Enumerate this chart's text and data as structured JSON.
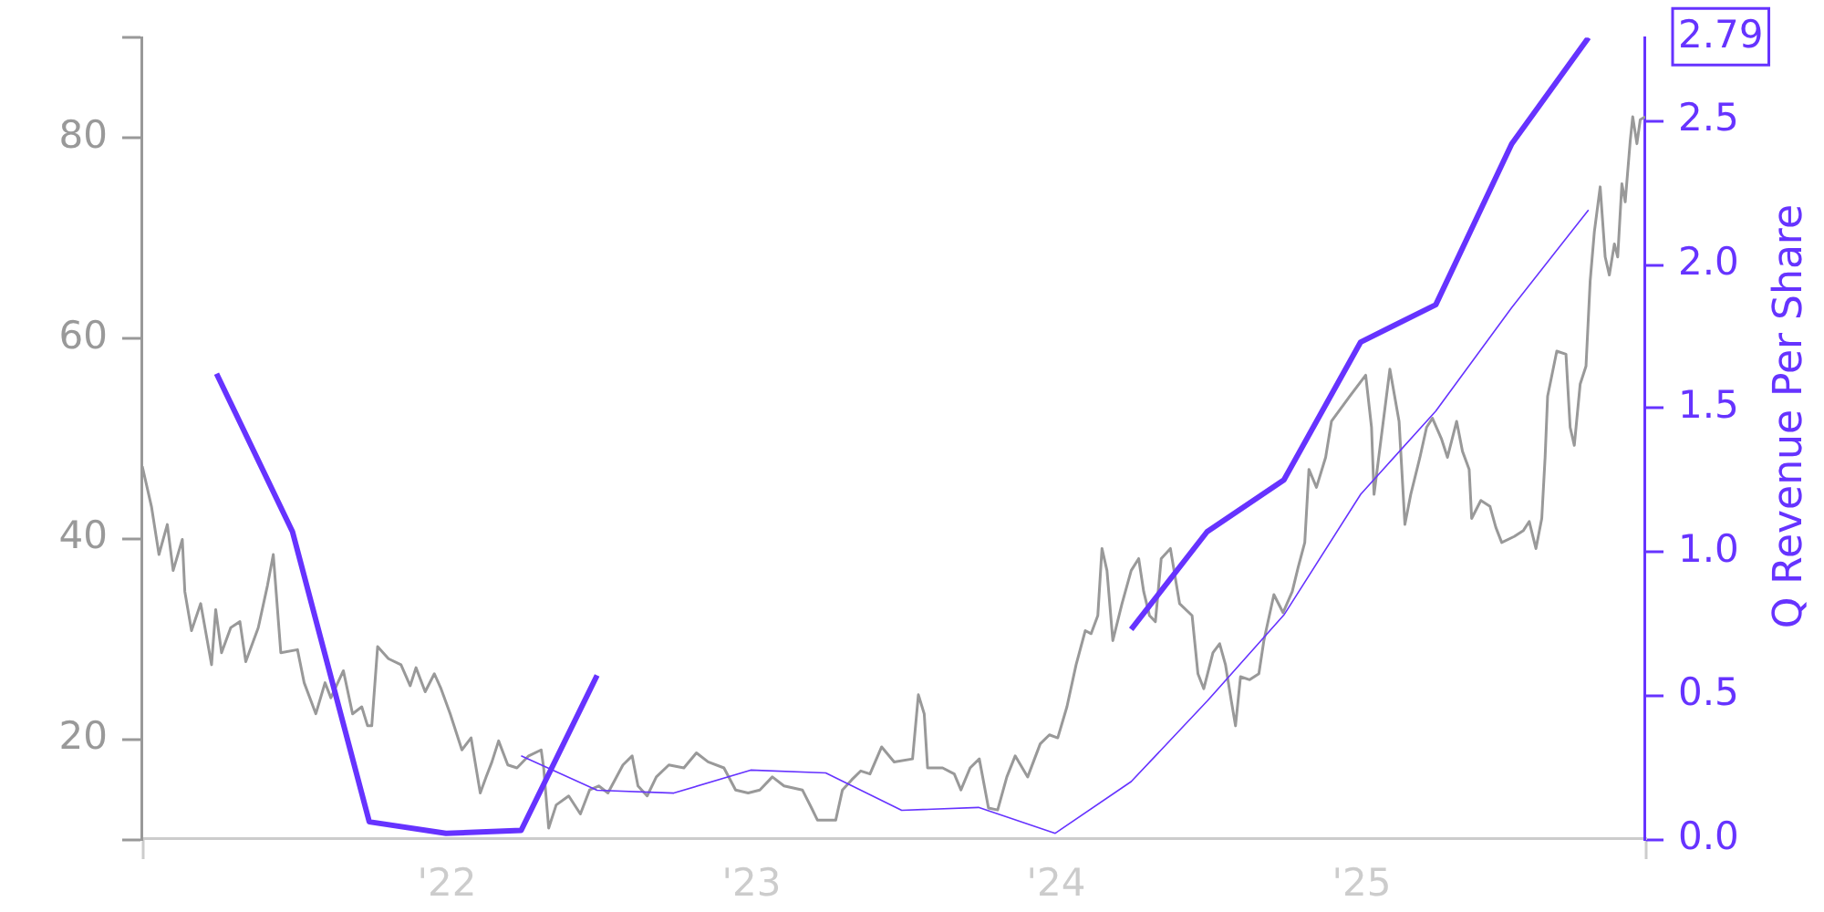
{
  "chart_data": {
    "type": "line",
    "y2label": "Q Revenue Per Share",
    "xlim": [
      "2021-01-01",
      "2025-12-07"
    ],
    "xticks": [
      {
        "value": "2021-01-01",
        "label": null
      },
      {
        "value": "2022-01-01",
        "label": "'22"
      },
      {
        "value": "2023-01-01",
        "label": "'23"
      },
      {
        "value": "2024-01-01",
        "label": "'24"
      },
      {
        "value": "2025-01-01",
        "label": "'25"
      },
      {
        "value": "2025-12-07",
        "label": null
      }
    ],
    "ylim": [
      10,
      90
    ],
    "yticks": [
      {
        "value": 10,
        "label": null
      },
      20,
      40,
      60,
      80,
      {
        "value": 90,
        "label": null
      }
    ],
    "y2lim": [
      0,
      2.79
    ],
    "y2ticks": [
      {
        "value": 0,
        "label": "0.0"
      },
      0.5,
      {
        "value": 1,
        "label": "1.0"
      },
      1.5,
      {
        "value": 2,
        "label": "2.0"
      },
      2.5,
      2.79
    ],
    "series": [
      {
        "color": "#999999",
        "x": [
          "2021-01-01",
          "2021-01-12",
          "2021-01-21",
          "2021-01-31",
          "2021-02-07",
          "2021-02-18",
          "2021-02-21",
          "2021-03-01",
          "2021-03-12",
          "2021-03-25",
          "2021-03-30",
          "2021-04-06",
          "2021-04-17",
          "2021-04-28",
          "2021-05-05",
          "2021-05-20",
          "2021-05-31",
          "2021-06-07",
          "2021-06-16",
          "2021-07-06",
          "2021-07-14",
          "2021-07-28",
          "2021-08-08",
          "2021-08-15",
          "2021-08-30",
          "2021-09-10",
          "2021-09-21",
          "2021-09-28",
          "2021-10-03",
          "2021-10-10",
          "2021-10-23",
          "2021-11-07",
          "2021-11-18",
          "2021-11-25",
          "2021-12-06",
          "2021-12-17",
          "2021-12-25",
          "2022-01-05",
          "2022-01-19",
          "2022-01-30",
          "2022-02-10",
          "2022-02-17",
          "2022-02-24",
          "2022-03-04",
          "2022-03-15",
          "2022-03-26",
          "2022-04-09",
          "2022-04-24",
          "2022-04-27",
          "2022-05-03",
          "2022-05-12",
          "2022-05-27",
          "2022-06-10",
          "2022-06-21",
          "2022-07-02",
          "2022-07-13",
          "2022-07-31",
          "2022-08-11",
          "2022-08-18",
          "2022-08-29",
          "2022-09-09",
          "2022-09-24",
          "2022-10-12",
          "2022-10-27",
          "2022-11-10",
          "2022-11-29",
          "2022-12-13",
          "2022-12-28",
          "2023-01-11",
          "2023-01-26",
          "2023-02-09",
          "2023-03-03",
          "2023-03-14",
          "2023-03-21",
          "2023-04-12",
          "2023-04-20",
          "2023-05-01",
          "2023-05-12",
          "2023-05-23",
          "2023-06-06",
          "2023-06-21",
          "2023-07-13",
          "2023-07-20",
          "2023-07-27",
          "2023-07-31",
          "2023-08-18",
          "2023-09-01",
          "2023-09-09",
          "2023-09-20",
          "2023-10-01",
          "2023-10-12",
          "2023-10-23",
          "2023-11-03",
          "2023-11-13",
          "2023-11-28",
          "2023-12-13",
          "2023-12-24",
          "2024-01-03",
          "2024-01-14",
          "2024-01-25",
          "2024-02-05",
          "2024-02-12",
          "2024-02-20",
          "2024-02-25",
          "2024-03-02",
          "2024-03-09",
          "2024-03-20",
          "2024-03-31",
          "2024-04-09",
          "2024-04-15",
          "2024-04-22",
          "2024-04-29",
          "2024-05-06",
          "2024-05-17",
          "2024-05-28",
          "2024-06-12",
          "2024-06-19",
          "2024-06-26",
          "2024-07-07",
          "2024-07-15",
          "2024-07-22",
          "2024-07-29",
          "2024-08-03",
          "2024-08-09",
          "2024-08-20",
          "2024-08-31",
          "2024-09-06",
          "2024-09-18",
          "2024-09-29",
          "2024-10-10",
          "2024-10-17",
          "2024-10-25",
          "2024-10-30",
          "2024-11-08",
          "2024-11-19",
          "2024-11-26",
          "2024-12-18",
          "2025-01-06",
          "2025-01-13",
          "2025-01-16",
          "2025-02-04",
          "2025-02-15",
          "2025-02-22",
          "2025-03-01",
          "2025-03-12",
          "2025-03-20",
          "2025-03-27",
          "2025-04-07",
          "2025-04-14",
          "2025-04-25",
          "2025-05-02",
          "2025-05-10",
          "2025-05-13",
          "2025-05-24",
          "2025-06-04",
          "2025-06-11",
          "2025-06-18",
          "2025-07-03",
          "2025-07-14",
          "2025-07-21",
          "2025-07-29",
          "2025-08-05",
          "2025-08-09",
          "2025-08-12",
          "2025-08-23",
          "2025-09-03",
          "2025-09-08",
          "2025-09-13",
          "2025-09-20",
          "2025-09-27",
          "2025-10-02",
          "2025-10-07",
          "2025-10-14",
          "2025-10-20",
          "2025-10-25",
          "2025-10-31",
          "2025-11-04",
          "2025-11-09",
          "2025-11-13",
          "2025-11-19",
          "2025-11-22",
          "2025-11-27",
          "2025-12-01",
          "2025-12-07"
        ],
        "values": [
          47.2,
          43.2,
          38.4,
          41.4,
          36.8,
          39.9,
          34.7,
          30.8,
          33.5,
          27.4,
          32.9,
          28.6,
          31.1,
          31.7,
          27.7,
          31.1,
          35.3,
          38.4,
          28.6,
          28.9,
          25.6,
          22.5,
          25.6,
          24.1,
          26.8,
          22.5,
          23.2,
          21.3,
          21.3,
          29.2,
          28.0,
          27.4,
          25.3,
          27.1,
          24.7,
          26.5,
          25.0,
          22.5,
          18.9,
          20.1,
          14.6,
          16.2,
          17.7,
          19.8,
          17.4,
          17.1,
          18.3,
          18.9,
          17.1,
          11.1,
          13.4,
          14.3,
          12.5,
          14.9,
          15.3,
          14.6,
          17.4,
          18.3,
          15.3,
          14.3,
          16.2,
          17.4,
          17.1,
          18.6,
          17.7,
          17.1,
          14.9,
          14.6,
          14.9,
          16.2,
          15.3,
          14.9,
          13.1,
          11.9,
          11.9,
          14.9,
          15.9,
          16.8,
          16.5,
          19.2,
          17.7,
          18.0,
          24.4,
          22.5,
          17.1,
          17.1,
          16.5,
          14.9,
          17.1,
          18.0,
          13.1,
          12.9,
          16.2,
          18.3,
          16.2,
          19.5,
          20.4,
          20.1,
          23.2,
          27.4,
          30.8,
          30.5,
          32.3,
          39.0,
          36.8,
          29.8,
          33.5,
          36.8,
          38.0,
          34.7,
          32.3,
          31.7,
          38.0,
          39.0,
          33.5,
          32.3,
          26.5,
          25.0,
          28.6,
          29.5,
          27.4,
          23.8,
          21.3,
          26.2,
          25.9,
          26.5,
          29.8,
          34.4,
          32.6,
          34.7,
          37.1,
          39.6,
          46.9,
          45.1,
          48.1,
          51.7,
          54.2,
          56.3,
          51.1,
          44.4,
          56.9,
          51.7,
          41.4,
          44.4,
          48.1,
          51.1,
          52.0,
          49.9,
          48.1,
          51.7,
          48.7,
          46.9,
          42.0,
          43.8,
          43.2,
          41.1,
          39.6,
          40.2,
          40.8,
          41.7,
          39.0,
          42.0,
          48.1,
          54.2,
          58.7,
          58.4,
          51.1,
          49.3,
          55.4,
          57.2,
          65.7,
          70.6,
          75.1,
          68.1,
          66.3,
          69.4,
          68.1,
          75.4,
          73.6,
          79.7,
          82.1,
          79.4,
          81.8,
          82.1
        ]
      },
      {
        "color": "#6633ff",
        "axis": "y2",
        "x": [
          "2021-03-31",
          "2021-06-30",
          "2021-09-30",
          "2021-12-31",
          "2022-03-31",
          "2022-06-30",
          "2022-09-30",
          "2024-03-31",
          "2024-06-30",
          "2024-09-30",
          "2024-12-31",
          "2025-03-31",
          "2025-06-30",
          "2025-09-30"
        ],
        "values": [
          1.62,
          1.07,
          0.06,
          0.02,
          0.03,
          0.57,
          null,
          0.73,
          1.07,
          1.25,
          1.73,
          1.86,
          2.42,
          2.79
        ]
      },
      {
        "color": "#6633ff",
        "axis": "y2",
        "x": [
          "2022-03-31",
          "2022-06-30",
          "2022-09-30",
          "2022-12-31",
          "2023-03-31",
          "2023-06-30",
          "2023-09-30",
          "2023-12-31",
          "2024-03-31",
          "2024-06-30",
          "2024-09-30",
          "2024-12-31",
          "2025-03-31",
          "2025-06-30",
          "2025-09-30"
        ],
        "values": [
          0.29,
          0.17,
          0.16,
          0.24,
          0.23,
          0.1,
          0.11,
          0.02,
          0.2,
          0.48,
          0.78,
          1.2,
          1.49,
          1.85,
          2.19
        ]
      }
    ]
  }
}
